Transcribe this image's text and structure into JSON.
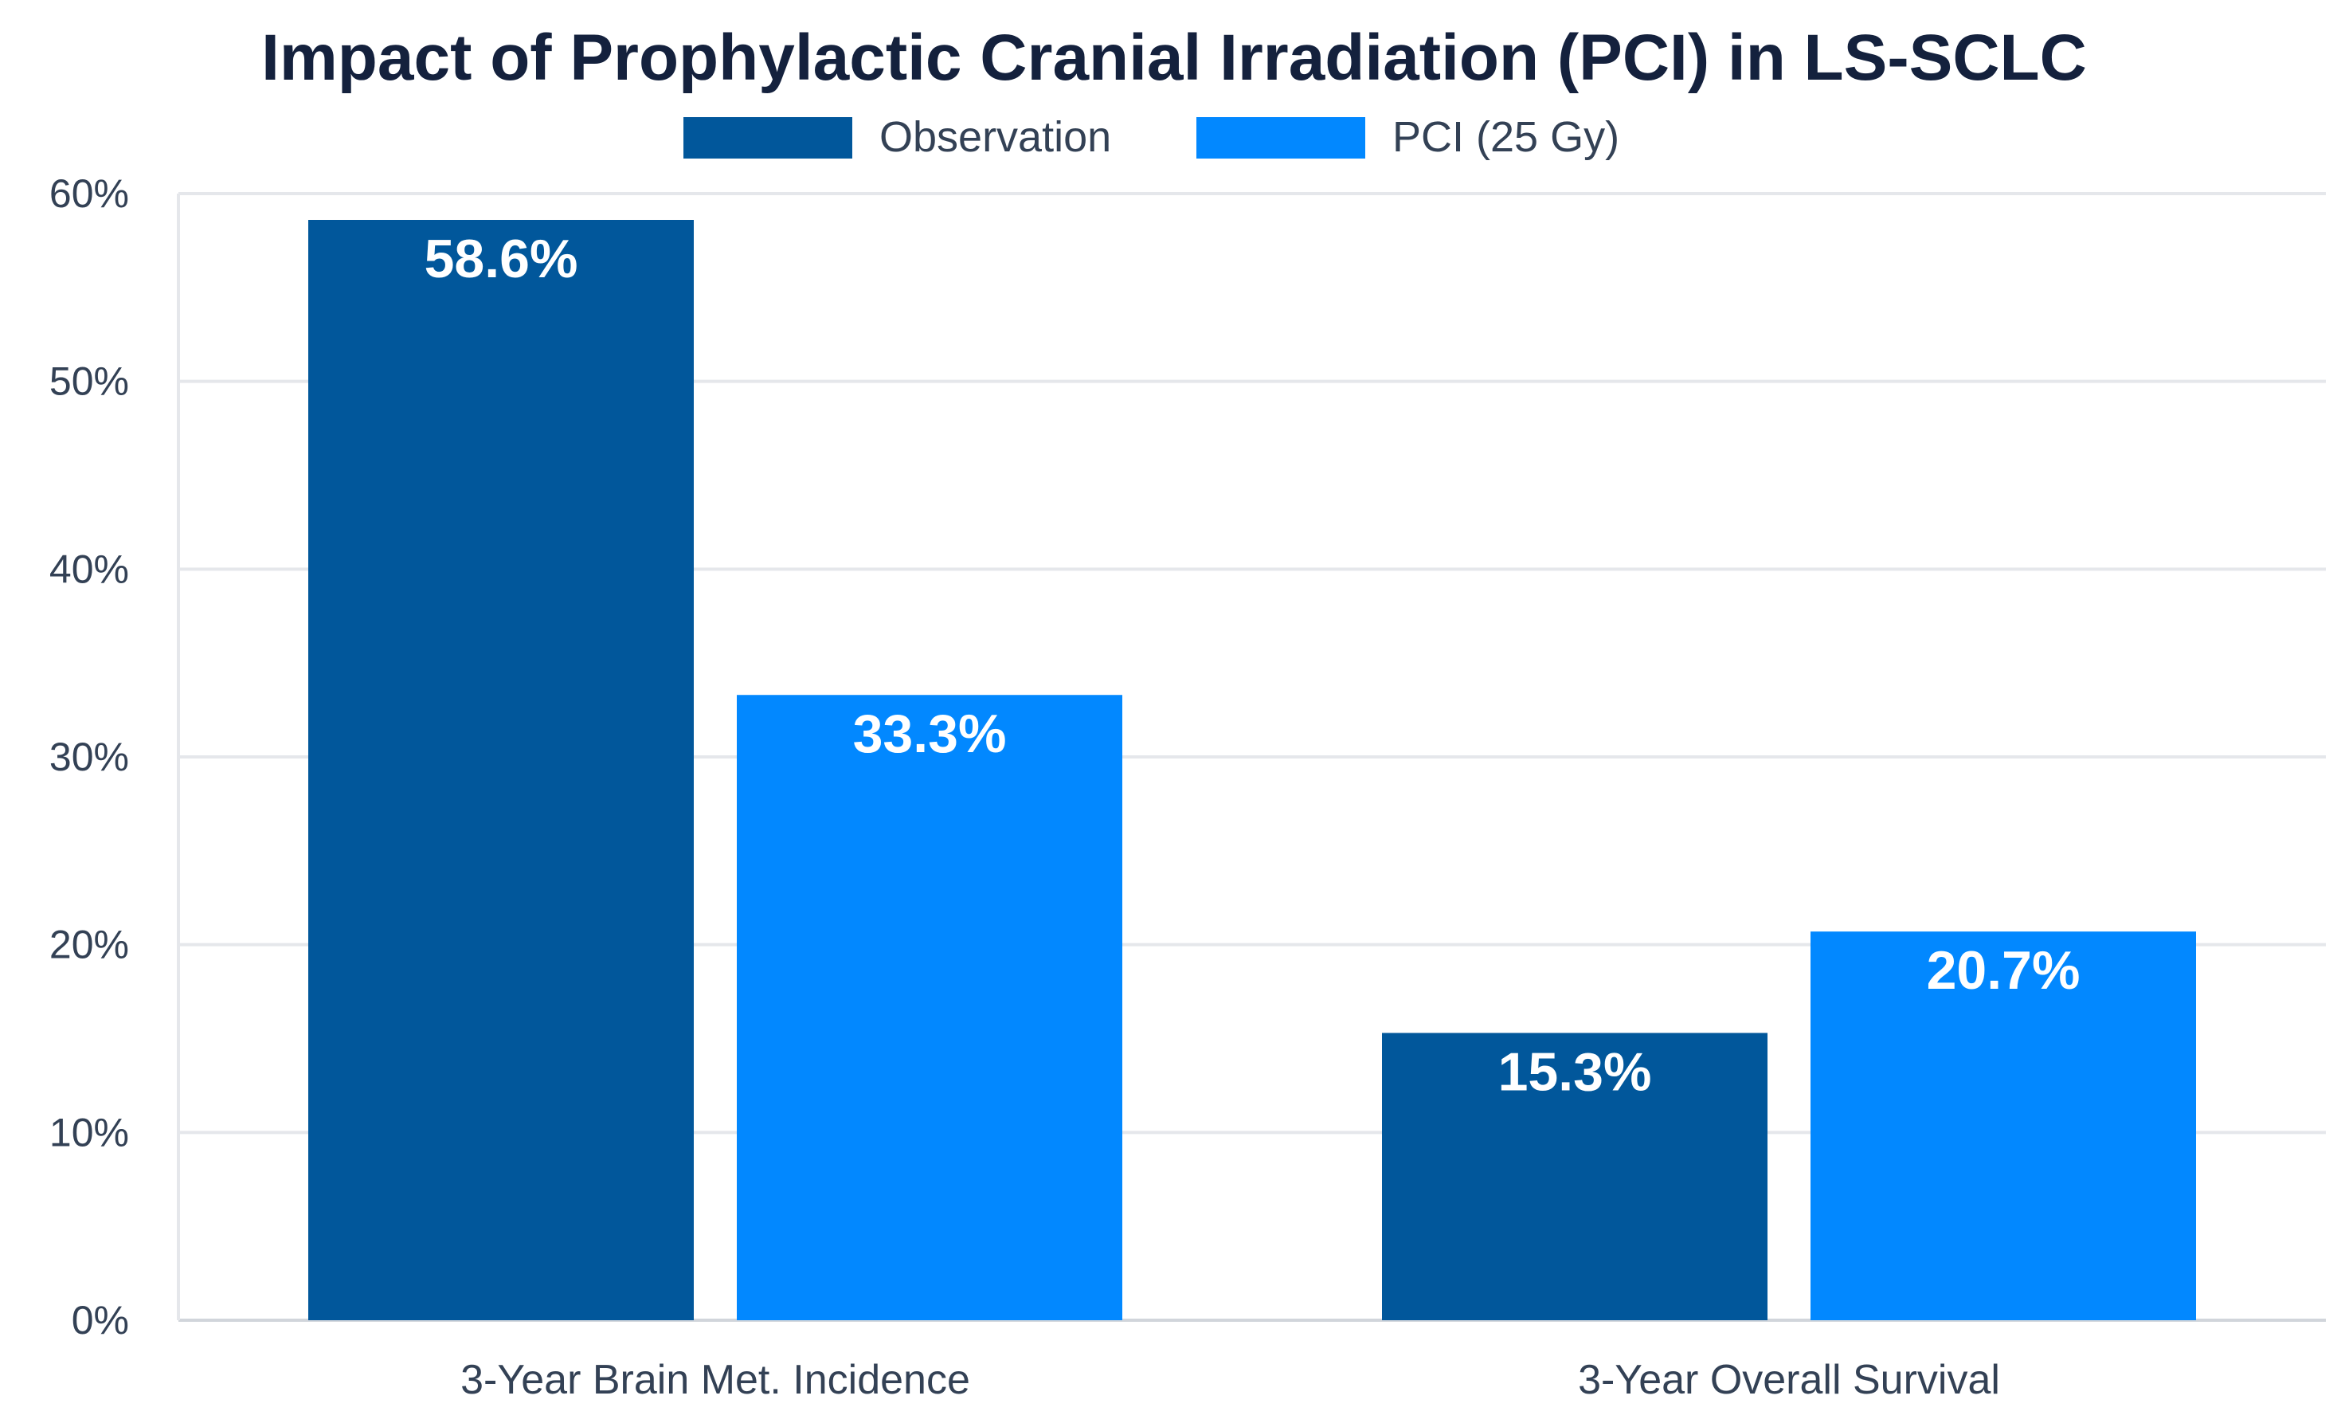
{
  "chart_data": {
    "type": "bar",
    "title": "Impact of Prophylactic Cranial Irradiation (PCI) in LS-SCLC",
    "categories": [
      "3-Year Brain Met. Incidence",
      "3-Year Overall Survival"
    ],
    "series": [
      {
        "name": "Observation",
        "color": "#01579b",
        "values": [
          58.6,
          15.3
        ],
        "labels": [
          "58.6%",
          "15.3%"
        ]
      },
      {
        "name": "PCI (25 Gy)",
        "color": "#0288ff",
        "values": [
          33.3,
          20.7
        ],
        "labels": [
          "33.3%",
          "20.7%"
        ]
      }
    ],
    "ylim": [
      0,
      60
    ],
    "yticks": [
      0,
      10,
      20,
      30,
      40,
      50,
      60
    ],
    "ytick_labels": [
      "0%",
      "10%",
      "20%",
      "30%",
      "40%",
      "50%",
      "60%"
    ],
    "xlabel": "",
    "ylabel": "",
    "grid": true,
    "legend_position": "top-center"
  }
}
